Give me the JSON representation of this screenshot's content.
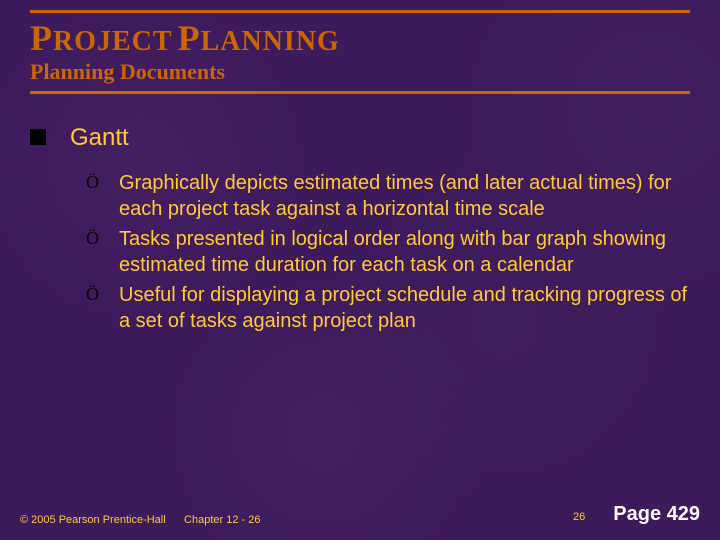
{
  "colors": {
    "background": "#3d1a5b",
    "accent": "#cc6600",
    "text": "#ffcc33",
    "pageLabel": "#ffffff",
    "bulletSquare": "#000000"
  },
  "typography": {
    "titleFont": "Times New Roman",
    "bodyFont": "Arial",
    "titleBigSize": 36,
    "titleSmallSize": 28,
    "subtitleSize": 22,
    "level1Size": 24,
    "level2Size": 20,
    "footerSize": 11,
    "pageLabelSize": 20
  },
  "title": {
    "word1_cap": "P",
    "word1_rest": "ROJECT",
    "word2_cap": "P",
    "word2_rest": "LANNING"
  },
  "subtitle": "Planning Documents",
  "level1": "Gantt",
  "bullets": [
    "Graphically depicts estimated times (and later actual times) for each project task against a horizontal time scale",
    "Tasks presented in logical order along with bar graph showing estimated time duration for each task on a calendar",
    "Useful for displaying a project schedule and tracking progress of a set of tasks against project plan"
  ],
  "footer": {
    "copyright": "© 2005  Pearson Prentice-Hall",
    "chapter": "Chapter 12 - 26",
    "slideNumber": "26",
    "pageLabel": "Page 429"
  }
}
